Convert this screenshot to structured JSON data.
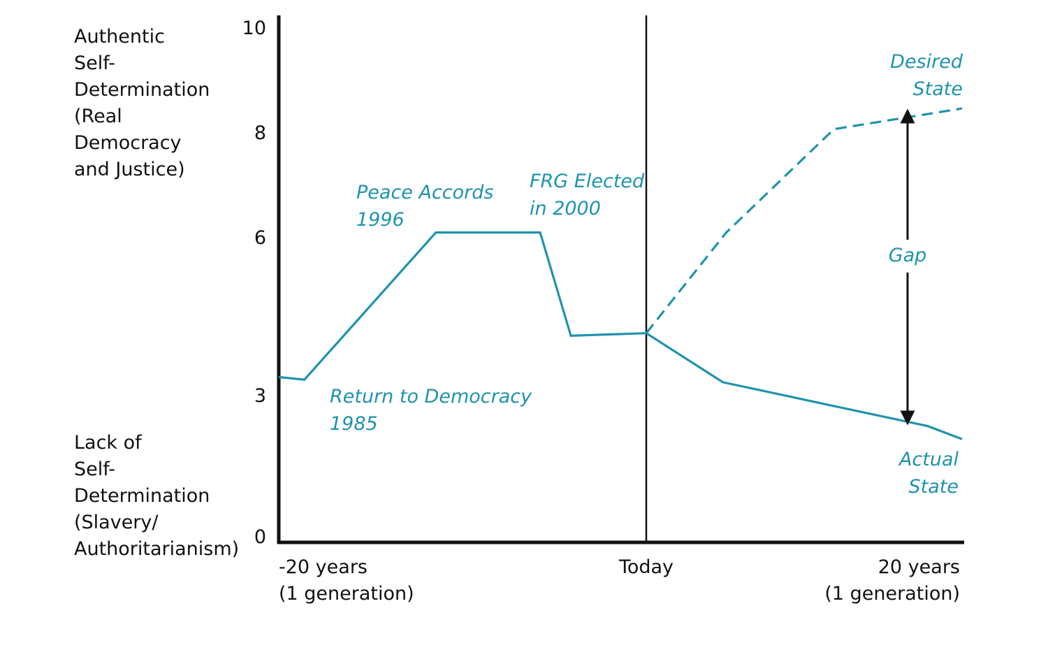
{
  "chart_data": {
    "type": "line",
    "title": "",
    "ylim": [
      0,
      10
    ],
    "yticks": [
      0,
      3,
      6,
      8,
      10
    ],
    "ytick_labels": [
      "0",
      "3",
      "6",
      "8",
      "10"
    ],
    "xlim": [
      -20,
      20
    ],
    "xtick_labels": [
      {
        "x": -20,
        "lines": [
          "-20 years",
          "(1 generation)"
        ]
      },
      {
        "x": 0,
        "lines": [
          "Today"
        ]
      },
      {
        "x": 20,
        "lines": [
          "20 years",
          "(1 generation)"
        ]
      }
    ],
    "ylabel_top": [
      "Authentic",
      "Self-",
      "Determination",
      "(Real",
      "Democracy",
      "and Justice)"
    ],
    "ylabel_bottom": [
      "Lack of",
      "Self-",
      "Determination",
      "(Slavery/",
      "Authoritarianism)"
    ],
    "today_line_x": 0,
    "series": [
      {
        "name": "Actual State",
        "style": "solid",
        "points": [
          [
            -20,
            3.2
          ],
          [
            -18.5,
            3.15
          ],
          [
            -10.8,
            6.0
          ],
          [
            -4.7,
            6.0
          ],
          [
            -2.9,
            4.0
          ],
          [
            0,
            4.05
          ],
          [
            6,
            3.1
          ],
          [
            18,
            2.25
          ],
          [
            20,
            2.0
          ]
        ]
      },
      {
        "name": "Desired State",
        "style": "dashed",
        "points": [
          [
            0,
            4.05
          ],
          [
            6.2,
            6.0
          ],
          [
            12.5,
            8.0
          ],
          [
            20,
            8.4
          ]
        ]
      }
    ],
    "annotations": [
      {
        "id": "return",
        "lines": [
          "Return to Democracy",
          "1985"
        ]
      },
      {
        "id": "peace",
        "lines": [
          "Peace Accords",
          "1996"
        ]
      },
      {
        "id": "frg",
        "lines": [
          "FRG Elected",
          "in 2000"
        ]
      },
      {
        "id": "desired",
        "lines": [
          "Desired",
          "State"
        ]
      },
      {
        "id": "actual",
        "lines": [
          "Actual",
          "State"
        ]
      },
      {
        "id": "gap",
        "lines": [
          "Gap"
        ]
      }
    ],
    "gap_arrow": {
      "x": 15.5,
      "y_from": 2.2,
      "y_to": 8.05
    },
    "colors": {
      "series": "#1f93ad",
      "axis": "#111111",
      "text": "#111111"
    }
  }
}
